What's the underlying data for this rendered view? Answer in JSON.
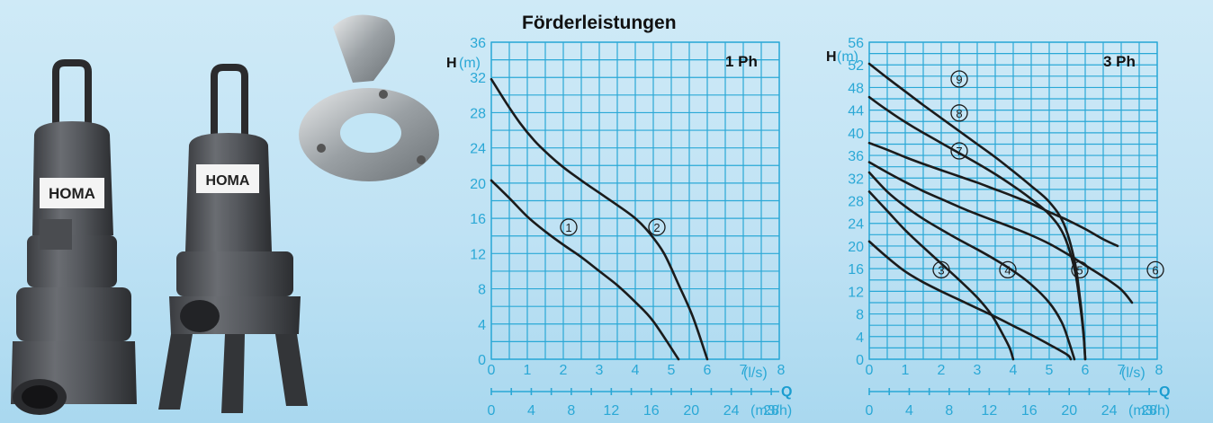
{
  "heading": "Förderleistungen",
  "chart_data": [
    {
      "type": "line",
      "phase_label": "1 Ph",
      "ylabel": "H",
      "y_unit": "(m)",
      "xlabel": "Q",
      "x_unit_primary": "(l/s)",
      "x_unit_secondary": "(m3/h)",
      "xlim": [
        0,
        8
      ],
      "ylim": [
        0,
        36
      ],
      "x_ticks": [
        "0",
        "1",
        "2",
        "3",
        "4",
        "5",
        "6",
        "7",
        "8"
      ],
      "y_ticks": [
        "0",
        "4",
        "8",
        "12",
        "16",
        "20",
        "24",
        "28",
        "32",
        "36"
      ],
      "x2_ticks": [
        "0",
        "4",
        "8",
        "12",
        "16",
        "20",
        "24",
        "28"
      ],
      "x2_per_primary": 3.6,
      "grid": true,
      "series": [
        {
          "name": "①",
          "x": [
            0,
            0.5,
            1,
            1.5,
            2,
            2.5,
            3,
            3.5,
            4,
            4.5,
            5.2
          ],
          "y": [
            20.3,
            18.3,
            16.2,
            14.5,
            13.0,
            11.6,
            10.0,
            8.4,
            6.5,
            4.3,
            0
          ]
        },
        {
          "name": "②",
          "x": [
            0,
            0.4,
            0.8,
            1.2,
            1.6,
            2,
            2.5,
            3,
            3.5,
            4,
            4.4,
            4.8,
            5.2,
            5.6,
            6.0
          ],
          "y": [
            31.8,
            29.2,
            26.8,
            24.8,
            23.2,
            21.8,
            20.3,
            18.9,
            17.5,
            16.0,
            14.3,
            12.0,
            8.5,
            4.8,
            0
          ]
        }
      ],
      "series_label_points": [
        [
          2.15,
          15.0
        ],
        [
          4.6,
          15.0
        ]
      ]
    },
    {
      "type": "line",
      "phase_label": "3 Ph",
      "ylabel": "H",
      "y_unit": "(m)",
      "xlabel": "Q",
      "x_unit_primary": "(l/s)",
      "x_unit_secondary": "(m3/h)",
      "xlim": [
        0,
        8
      ],
      "ylim": [
        0,
        56
      ],
      "x_ticks": [
        "0",
        "1",
        "2",
        "3",
        "4",
        "5",
        "6",
        "7",
        "8"
      ],
      "y_ticks": [
        "0",
        "4",
        "8",
        "12",
        "16",
        "20",
        "24",
        "28",
        "32",
        "36",
        "40",
        "44",
        "48",
        "52",
        "56"
      ],
      "x2_ticks": [
        "0",
        "4",
        "8",
        "12",
        "16",
        "20",
        "24",
        "28"
      ],
      "x2_per_primary": 3.6,
      "grid": true,
      "series": [
        {
          "name": "③",
          "x": [
            0,
            0.5,
            1,
            1.5,
            2,
            2.5,
            3,
            3.5,
            4,
            4.5,
            5.0,
            5.5,
            5.6
          ],
          "y": [
            20.8,
            18.0,
            15.5,
            13.6,
            12.0,
            10.5,
            9.0,
            7.5,
            5.9,
            4.3,
            2.6,
            0.8,
            0
          ]
        },
        {
          "name": "④",
          "x": [
            0,
            0.5,
            1,
            1.5,
            2,
            2.5,
            3,
            3.4,
            3.7,
            3.9,
            4.0
          ],
          "y": [
            29.6,
            26.2,
            22.8,
            19.8,
            16.9,
            14.0,
            10.9,
            7.8,
            4.5,
            2.0,
            0
          ]
        },
        {
          "name": "⑤",
          "x": [
            0,
            0.5,
            1,
            1.5,
            2,
            2.5,
            3,
            3.5,
            4,
            4.5,
            5.0,
            5.35,
            5.55,
            5.7
          ],
          "y": [
            33.0,
            29.6,
            27.0,
            24.8,
            22.9,
            21.1,
            19.4,
            17.6,
            15.6,
            13.2,
            10.0,
            6.5,
            3.0,
            0
          ]
        },
        {
          "name": "⑥",
          "x": [
            0,
            0.5,
            1,
            1.5,
            2,
            2.5,
            3,
            3.5,
            4,
            4.5,
            5,
            5.5,
            6,
            6.5,
            7,
            7.3
          ],
          "y": [
            34.8,
            33.0,
            31.3,
            29.7,
            28.3,
            26.9,
            25.6,
            24.4,
            23.2,
            21.9,
            20.4,
            18.6,
            16.6,
            14.6,
            12.3,
            10.0
          ]
        },
        {
          "name": "⑦",
          "x": [
            0,
            0.5,
            1,
            1.5,
            2,
            2.5,
            3,
            3.5,
            4,
            4.5,
            5,
            5.5,
            6,
            6.5,
            6.9
          ],
          "y": [
            38.2,
            37.0,
            35.7,
            34.5,
            33.4,
            32.3,
            31.2,
            30.0,
            28.8,
            27.5,
            26.0,
            24.6,
            23.0,
            21.2,
            20.0
          ]
        },
        {
          "name": "⑧",
          "x": [
            0,
            0.5,
            1,
            1.5,
            2,
            2.5,
            3,
            3.5,
            4,
            4.5,
            5,
            5.4,
            5.7,
            5.85,
            5.95,
            6.0
          ],
          "y": [
            46.3,
            44.0,
            41.9,
            40.0,
            38.2,
            36.4,
            34.6,
            32.7,
            30.6,
            28.3,
            25.6,
            22.0,
            16.0,
            10.0,
            4.5,
            0
          ]
        },
        {
          "name": "⑨",
          "x": [
            0,
            0.5,
            1,
            1.5,
            2,
            2.5,
            3,
            3.5,
            4,
            4.5,
            5,
            5.4,
            5.7,
            5.85,
            5.95,
            6.0
          ],
          "y": [
            52.2,
            49.7,
            47.3,
            44.9,
            42.6,
            40.3,
            38.0,
            35.7,
            33.2,
            30.6,
            27.8,
            24.0,
            17.5,
            11.0,
            5.0,
            0
          ]
        }
      ],
      "series_label_points": [
        [
          2.0,
          15.8
        ],
        [
          3.85,
          15.8
        ],
        [
          5.85,
          15.8
        ],
        [
          7.95,
          15.8
        ],
        [
          2.5,
          36.8
        ],
        [
          2.5,
          43.5
        ],
        [
          2.5,
          49.5
        ]
      ]
    }
  ]
}
